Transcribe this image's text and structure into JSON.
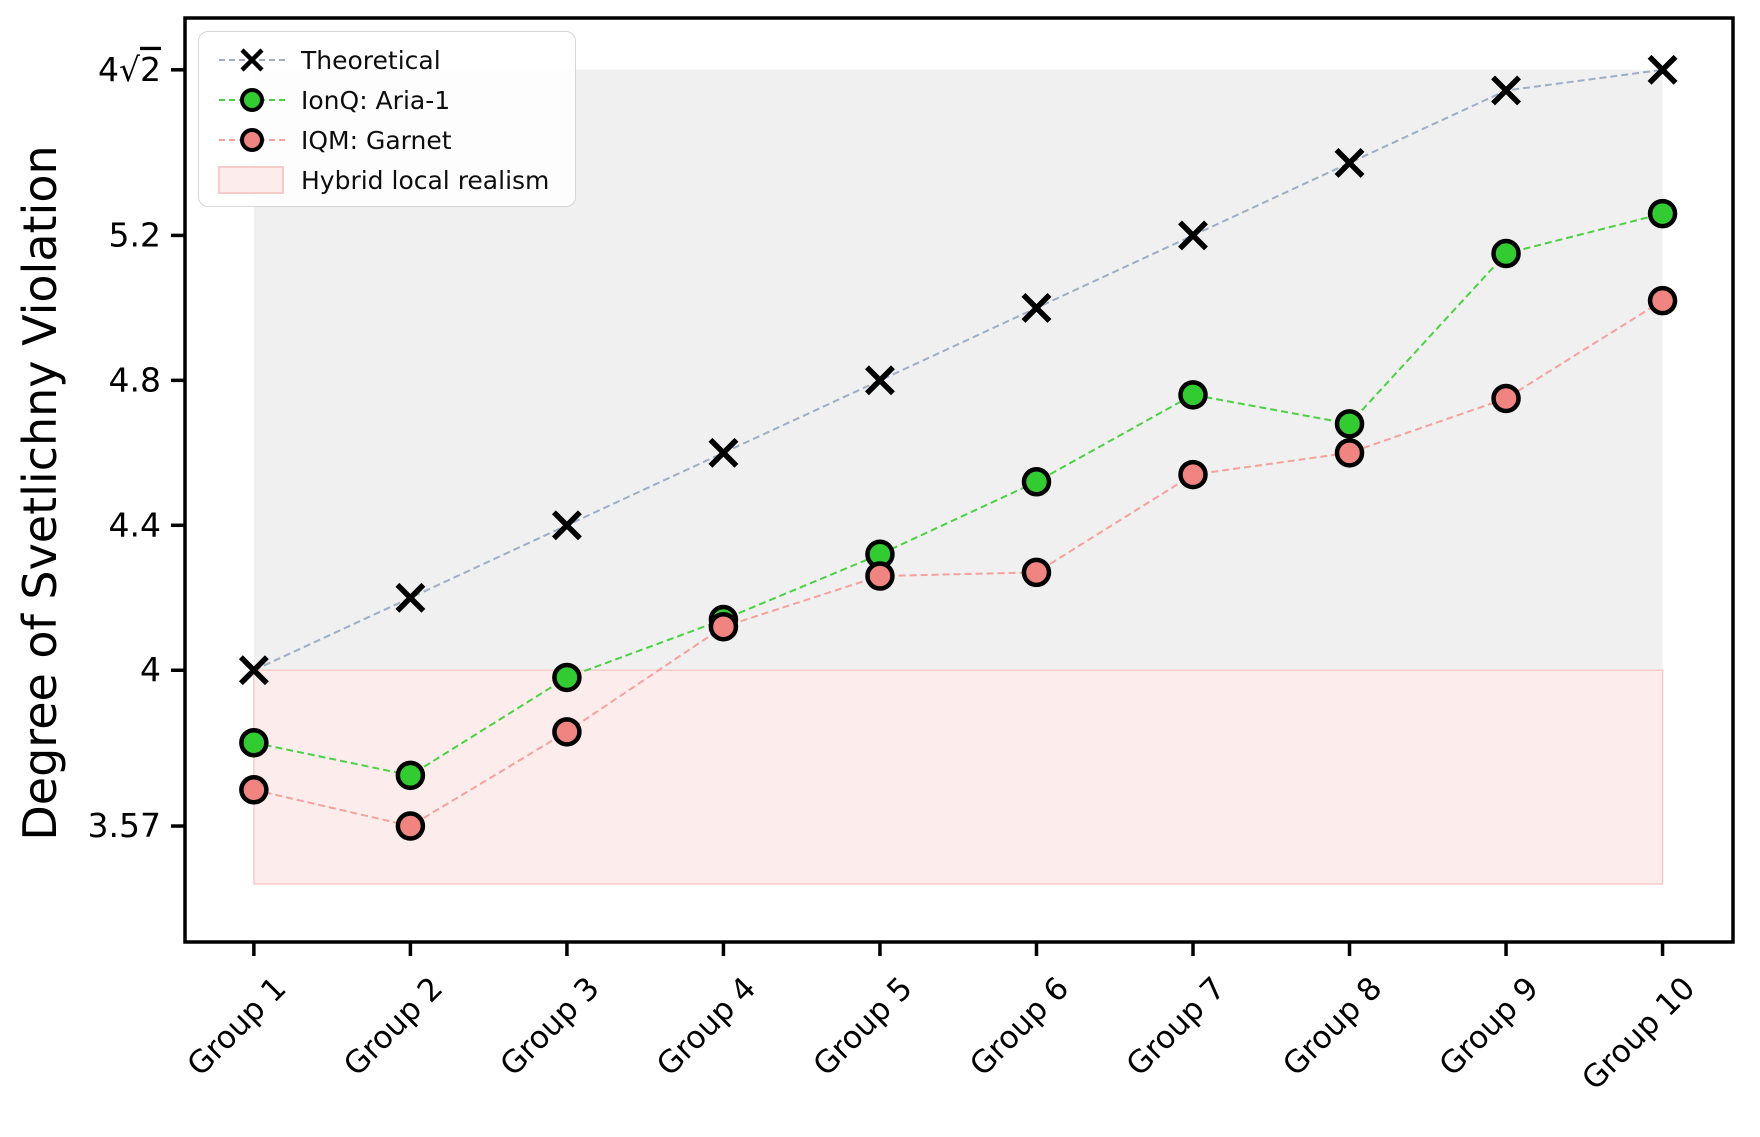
{
  "chart_data": {
    "type": "line",
    "title": "",
    "xlabel": "",
    "ylabel": "Degree of Svetlichny Violation",
    "categories": [
      "Group 1",
      "Group 2",
      "Group 3",
      "Group 4",
      "Group 5",
      "Group 6",
      "Group 7",
      "Group 8",
      "Group 9",
      "Group 10"
    ],
    "series": [
      {
        "name": "Theoretical",
        "values": [
          4.0,
          4.2,
          4.4,
          4.6,
          4.8,
          5.0,
          5.2,
          5.4,
          5.6,
          5.657
        ],
        "marker": "x",
        "marker_color": "#000000",
        "line_color": "#9daec6"
      },
      {
        "name": "IonQ: Aria-1",
        "values": [
          3.8,
          3.71,
          3.98,
          4.14,
          4.32,
          4.52,
          4.76,
          4.68,
          5.15,
          5.26
        ],
        "marker": "circle",
        "marker_color": "#33cb32",
        "marker_edge": "#000000",
        "line_color": "#4bd143"
      },
      {
        "name": "IQM: Garnet",
        "values": [
          3.67,
          3.57,
          3.83,
          4.12,
          4.26,
          4.27,
          4.54,
          4.6,
          4.75,
          5.02
        ],
        "marker": "circle",
        "marker_color": "#ef8480",
        "marker_edge": "#000000",
        "line_color": "#f5a19c"
      }
    ],
    "regions": [
      {
        "name": "above-classical-band",
        "label": "",
        "y0": 4.0,
        "y1": 5.657,
        "fill": "#f0f0f0",
        "edge": "rgba(0,0,0,0)"
      },
      {
        "name": "hybrid-local-realism-band",
        "label": "Hybrid local realism",
        "y0": 3.41,
        "y1": 4.0,
        "fill": "#fdecec",
        "edge": "rgba(246,198,196,0.9)"
      }
    ],
    "y_ticks": [
      {
        "value": 5.657,
        "label": "4√2"
      },
      {
        "value": 5.2,
        "label": "5.2"
      },
      {
        "value": 4.8,
        "label": "4.8"
      },
      {
        "value": 4.4,
        "label": "4.4"
      },
      {
        "value": 4.0,
        "label": "4"
      },
      {
        "value": 3.57,
        "label": "3.57"
      }
    ],
    "ylim": [
      3.25,
      5.8
    ],
    "xlim": [
      -0.44,
      9.45
    ],
    "x_tick_rotation": 45,
    "grid": false,
    "legend": {
      "position": "upper-left",
      "entries": [
        "Theoretical",
        "IonQ: Aria-1",
        "IQM: Garnet",
        "Hybrid local realism"
      ]
    }
  }
}
